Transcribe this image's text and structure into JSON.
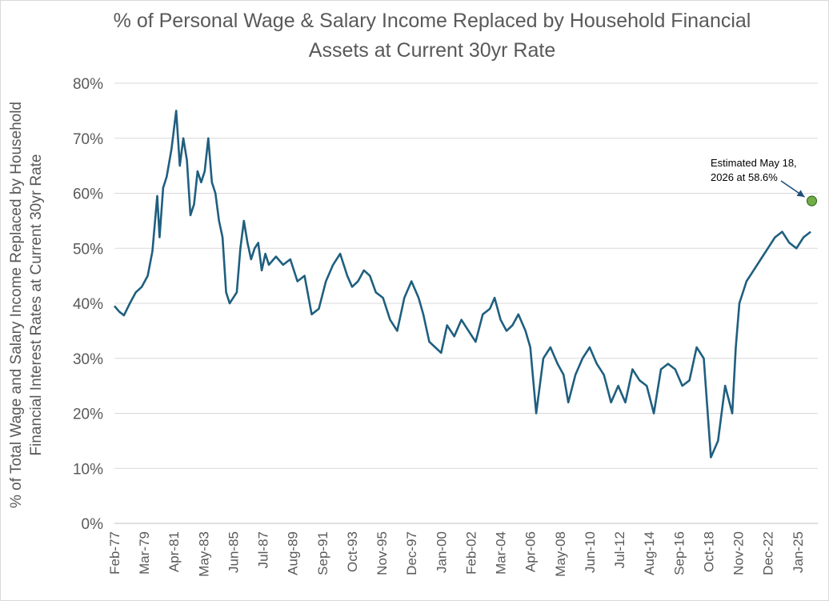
{
  "chart_data": {
    "type": "line",
    "title_line1": "% of Personal Wage & Salary Income Replaced by Household Financial",
    "title_line2": "Assets at Current 30yr Rate",
    "ylabel_line1": "% of Total Wage and Salary Income Replaced by Household",
    "ylabel_line2": "Financial Interest Rates at Current 30yr Rate",
    "xlabel": "",
    "ylim": [
      0,
      80
    ],
    "yticks": [
      "0%",
      "10%",
      "20%",
      "30%",
      "40%",
      "50%",
      "60%",
      "70%",
      "80%"
    ],
    "xticks": [
      "Feb-77",
      "Mar-79",
      "Apr-81",
      "May-83",
      "Jun-85",
      "Jul-87",
      "Aug-89",
      "Sep-91",
      "Oct-93",
      "Nov-95",
      "Dec-97",
      "Jan-00",
      "Feb-02",
      "Mar-04",
      "Apr-06",
      "May-08",
      "Jun-10",
      "Jul-12",
      "Aug-14",
      "Sep-16",
      "Oct-18",
      "Nov-20",
      "Dec-22",
      "Jan-25"
    ],
    "grid": "horizontal",
    "line_color": "#1f5f7f",
    "series": [
      {
        "x": [
          "1977-02",
          "1977-06",
          "1977-10",
          "1978-03",
          "1978-08",
          "1979-01",
          "1979-06",
          "1979-10",
          "1980-02",
          "1980-04",
          "1980-07",
          "1980-10",
          "1981-02",
          "1981-06",
          "1981-09",
          "1981-12",
          "1982-03",
          "1982-06",
          "1982-09",
          "1982-12",
          "1983-03",
          "1983-06",
          "1983-09",
          "1983-12",
          "1984-03",
          "1984-06",
          "1984-09",
          "1984-12",
          "1985-03",
          "1985-06",
          "1985-09",
          "1985-12",
          "1986-03",
          "1986-06",
          "1986-09",
          "1986-12",
          "1987-03",
          "1987-06",
          "1987-09",
          "1987-12",
          "1988-06",
          "1988-12",
          "1989-06",
          "1989-12",
          "1990-06",
          "1990-12",
          "1991-06",
          "1991-12",
          "1992-06",
          "1992-12",
          "1993-06",
          "1993-10",
          "1994-03",
          "1994-08",
          "1995-01",
          "1995-06",
          "1995-12",
          "1996-06",
          "1996-12",
          "1997-06",
          "1997-12",
          "1998-06",
          "1998-10",
          "1999-03",
          "1999-08",
          "2000-01",
          "2000-06",
          "2000-12",
          "2001-06",
          "2001-12",
          "2002-06",
          "2002-12",
          "2003-06",
          "2003-10",
          "2004-03",
          "2004-08",
          "2005-01",
          "2005-06",
          "2005-12",
          "2006-04",
          "2006-09",
          "2007-03",
          "2007-09",
          "2008-03",
          "2008-08",
          "2008-12",
          "2009-06",
          "2009-12",
          "2010-06",
          "2010-12",
          "2011-06",
          "2011-12",
          "2012-06",
          "2012-12",
          "2013-06",
          "2013-12",
          "2014-06",
          "2014-12",
          "2015-06",
          "2015-12",
          "2016-06",
          "2016-12",
          "2017-06",
          "2017-12",
          "2018-06",
          "2018-12",
          "2019-06",
          "2019-12",
          "2020-06",
          "2020-09",
          "2020-12",
          "2021-06",
          "2021-12",
          "2022-06",
          "2022-12",
          "2023-06",
          "2023-12",
          "2024-06",
          "2024-12",
          "2025-06",
          "2025-12"
        ],
        "values": [
          39.5,
          38.5,
          37.8,
          40.0,
          42.0,
          43.0,
          45.0,
          49.5,
          59.5,
          52.0,
          61.0,
          63.0,
          68.0,
          75.0,
          65.0,
          70.0,
          66.0,
          56.0,
          58.0,
          64.0,
          62.0,
          64.0,
          70.0,
          62.0,
          60.0,
          55.0,
          52.0,
          42.0,
          40.0,
          41.0,
          42.0,
          50.0,
          55.0,
          51.0,
          48.0,
          50.0,
          51.0,
          46.0,
          49.0,
          47.0,
          48.5,
          47.0,
          48.0,
          44.0,
          45.0,
          38.0,
          39.0,
          44.0,
          47.0,
          49.0,
          45.0,
          43.0,
          44.0,
          46.0,
          45.0,
          42.0,
          41.0,
          37.0,
          35.0,
          41.0,
          44.0,
          41.0,
          38.0,
          33.0,
          32.0,
          31.0,
          36.0,
          34.0,
          37.0,
          35.0,
          33.0,
          38.0,
          39.0,
          41.0,
          37.0,
          35.0,
          36.0,
          38.0,
          35.0,
          32.0,
          20.0,
          30.0,
          32.0,
          29.0,
          27.0,
          22.0,
          27.0,
          30.0,
          32.0,
          29.0,
          27.0,
          22.0,
          25.0,
          22.0,
          28.0,
          26.0,
          25.0,
          20.0,
          28.0,
          29.0,
          28.0,
          25.0,
          26.0,
          32.0,
          30.0,
          12.0,
          15.0,
          25.0,
          20.0,
          32.0,
          40.0,
          44.0,
          46.0,
          48.0,
          50.0,
          52.0,
          53.0,
          51.0,
          50.0,
          52.0,
          53.0
        ],
        "annotation": "Estimated May 18, 2026 at 58.6%"
      }
    ],
    "estimate_point": {
      "x": "2026-05",
      "y": 58.6,
      "color": "#70ad47"
    }
  }
}
